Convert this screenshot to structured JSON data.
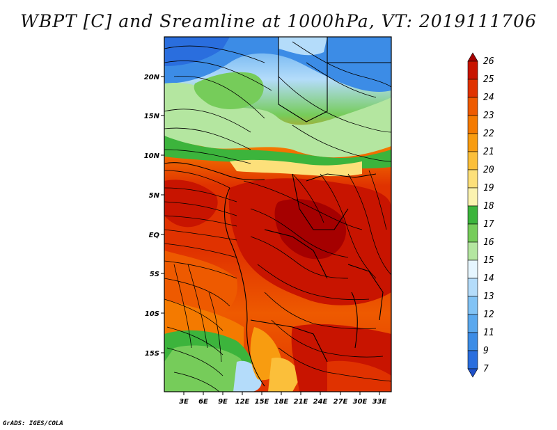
{
  "title": "WBPT [C] and Sreamline at 1000hPa, VT: 2019111706",
  "footer": "GrADS: IGES/COLA",
  "map": {
    "lat_labels": [
      "20N",
      "15N",
      "10N",
      "5N",
      "EQ",
      "5S",
      "10S",
      "15S"
    ],
    "lon_labels": [
      "3E",
      "6E",
      "9E",
      "12E",
      "15E",
      "18E",
      "21E",
      "24E",
      "27E",
      "30E",
      "33E"
    ],
    "variable": "Wet-bulb potential temperature",
    "overlay": "streamlines"
  },
  "colorbar": {
    "levels": [
      "26",
      "25",
      "24",
      "23",
      "22",
      "21",
      "20",
      "19",
      "18",
      "17",
      "16",
      "15",
      "14",
      "13",
      "12",
      "11",
      "9",
      "7"
    ],
    "colors": [
      "#a50000",
      "#c81400",
      "#e03200",
      "#ee5a00",
      "#f47a00",
      "#f89c10",
      "#fbbf3a",
      "#fde07a",
      "#fbf3b0",
      "#3cb43c",
      "#76cc5a",
      "#b4e6a0",
      "#e6f6ff",
      "#b4dcfa",
      "#82c3f5",
      "#5aa8ee",
      "#3c8ce6",
      "#2a6ede",
      "#1e50c8"
    ]
  }
}
